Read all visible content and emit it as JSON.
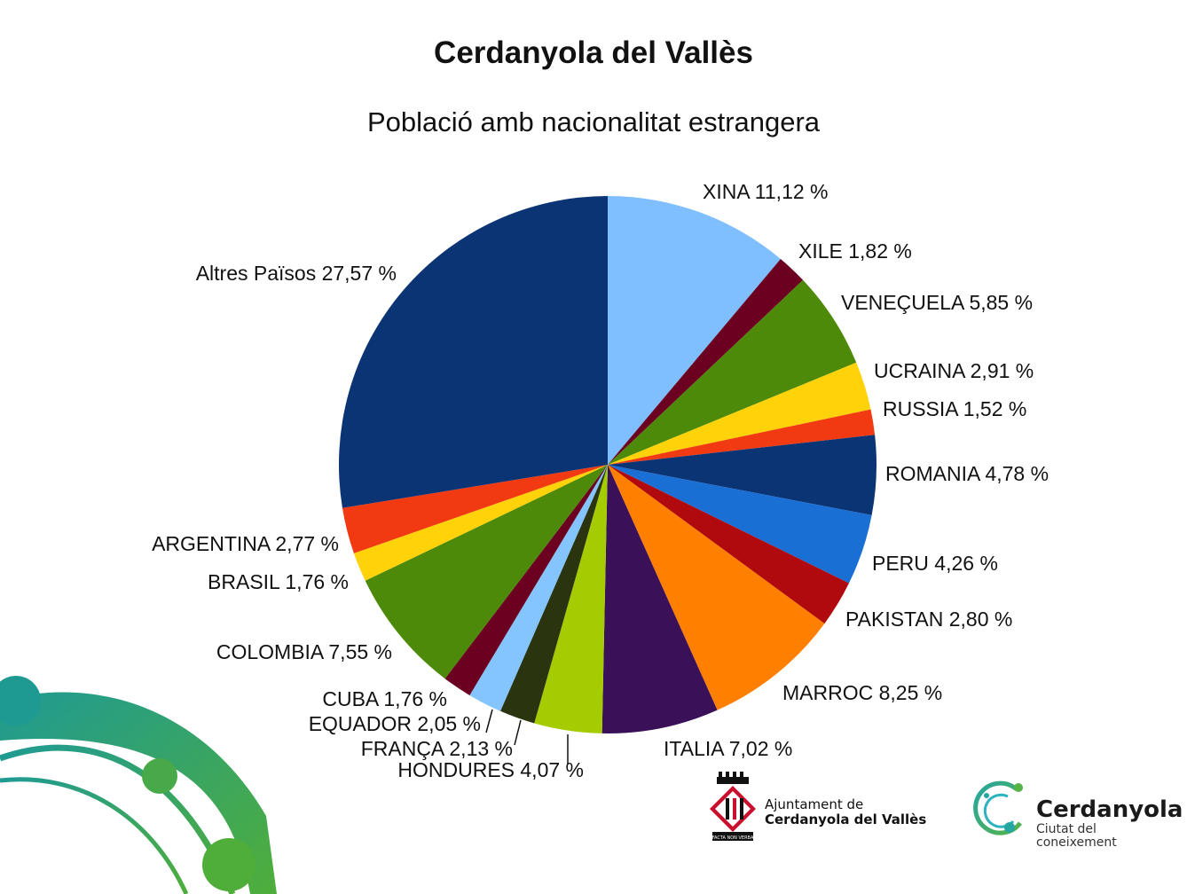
{
  "chart_data": {
    "type": "pie",
    "title": "Cerdanyola del Vallès",
    "subtitle": "Població amb nacionalitat estrangera",
    "slices": [
      {
        "name": "XINA",
        "value": 11.12,
        "label": "XINA 11,12 %",
        "color": "#7fbfff"
      },
      {
        "name": "XILE",
        "value": 1.82,
        "label": "XILE 1,82 %",
        "color": "#6b0020"
      },
      {
        "name": "VENEÇUELA",
        "value": 5.85,
        "label": "VENEÇUELA 5,85 %",
        "color": "#4d8a0a"
      },
      {
        "name": "UCRAINA",
        "value": 2.91,
        "label": "UCRAINA 2,91 %",
        "color": "#ffd20a"
      },
      {
        "name": "RUSSIA",
        "value": 1.52,
        "label": "RUSSIA 1,52 %",
        "color": "#f23a12"
      },
      {
        "name": "ROMANIA",
        "value": 4.78,
        "label": "ROMANIA 4,78 %",
        "color": "#0b3475"
      },
      {
        "name": "PERU",
        "value": 4.26,
        "label": "PERU 4,26 %",
        "color": "#1a6fd4"
      },
      {
        "name": "PAKISTAN",
        "value": 2.8,
        "label": "PAKISTAN 2,80 %",
        "color": "#b00a0e"
      },
      {
        "name": "MARROC",
        "value": 8.25,
        "label": "MARROC 8,25 %",
        "color": "#ff8000"
      },
      {
        "name": "ITALIA",
        "value": 7.02,
        "label": "ITALIA 7,02 %",
        "color": "#3a1158"
      },
      {
        "name": "HONDURES",
        "value": 4.07,
        "label": "HONDURES 4,07 %",
        "color": "#a5cc00"
      },
      {
        "name": "FRANÇA",
        "value": 2.13,
        "label": "FRANÇA 2,13 %",
        "color": "#2a3510"
      },
      {
        "name": "EQUADOR",
        "value": 2.05,
        "label": "EQUADOR 2,05 %",
        "color": "#84c5ff"
      },
      {
        "name": "CUBA",
        "value": 1.76,
        "label": "CUBA 1,76 %",
        "color": "#6b0020"
      },
      {
        "name": "COLOMBIA",
        "value": 7.55,
        "label": "COLOMBIA 7,55 %",
        "color": "#4d8a0a"
      },
      {
        "name": "BRASIL",
        "value": 1.76,
        "label": "BRASIL 1,76 %",
        "color": "#ffd20a"
      },
      {
        "name": "ARGENTINA",
        "value": 2.77,
        "label": "ARGENTINA 2,77 %",
        "color": "#f23a12"
      },
      {
        "name": "Altres Països",
        "value": 27.57,
        "label": "Altres Països 27,57 %",
        "color": "#0b3475"
      }
    ],
    "start_angle": "12 o'clock",
    "direction": "clockwise",
    "legend": "none (labels beside slices)"
  },
  "logos": {
    "ajuntament": {
      "line1": "Ajuntament de",
      "line2": "Cerdanyola del Vallès",
      "motto": "FACTA NON VERBA"
    },
    "ciutat": {
      "name": "Cerdanyola",
      "line1": "Ciutat del",
      "line2": "coneixement"
    }
  },
  "colors": {
    "decor_teal": "#1f9a93",
    "decor_green": "#4fae3a",
    "logo_red": "#c8102e"
  }
}
